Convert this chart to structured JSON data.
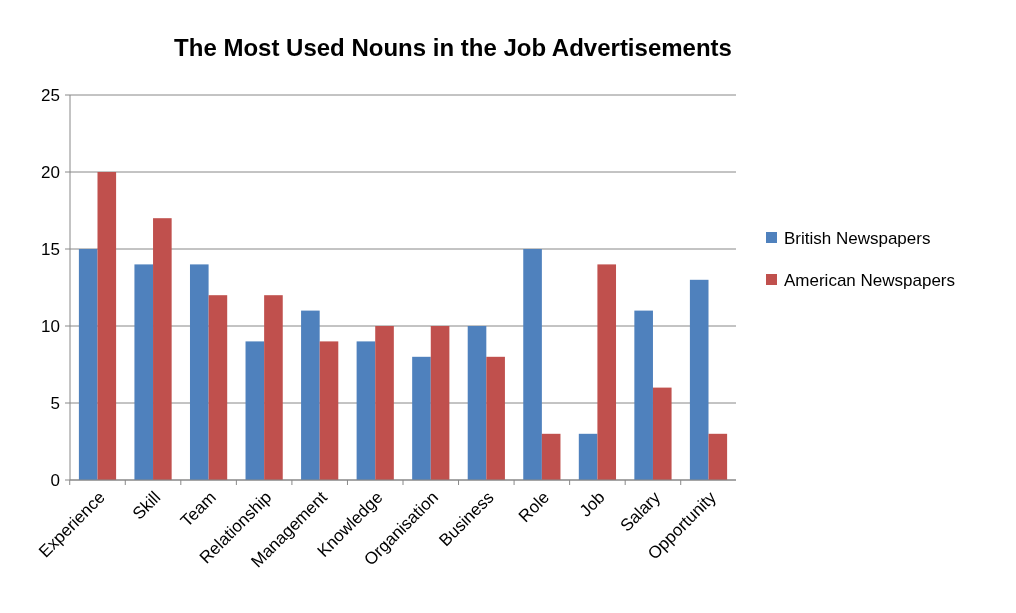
{
  "chart_data": {
    "type": "bar",
    "title": "The Most Used Nouns in the Job Advertisements",
    "categories": [
      "Experience",
      "Skill",
      "Team",
      "Relationship",
      "Management",
      "Knowledge",
      "Organisation",
      "Business",
      "Role",
      "Job",
      "Salary",
      "Opportunity"
    ],
    "series": [
      {
        "name": "British Newspapers",
        "color": "#4f81bd",
        "values": [
          15,
          14,
          14,
          9,
          11,
          9,
          8,
          10,
          15,
          3,
          11,
          13
        ]
      },
      {
        "name": "American Newspapers",
        "color": "#c0504d",
        "values": [
          20,
          17,
          12,
          12,
          9,
          10,
          10,
          8,
          3,
          14,
          6,
          3
        ]
      }
    ],
    "ylim": [
      0,
      25
    ],
    "yticks": [
      0,
      5,
      10,
      15,
      20,
      25
    ],
    "grid": "y",
    "legend": "right"
  }
}
